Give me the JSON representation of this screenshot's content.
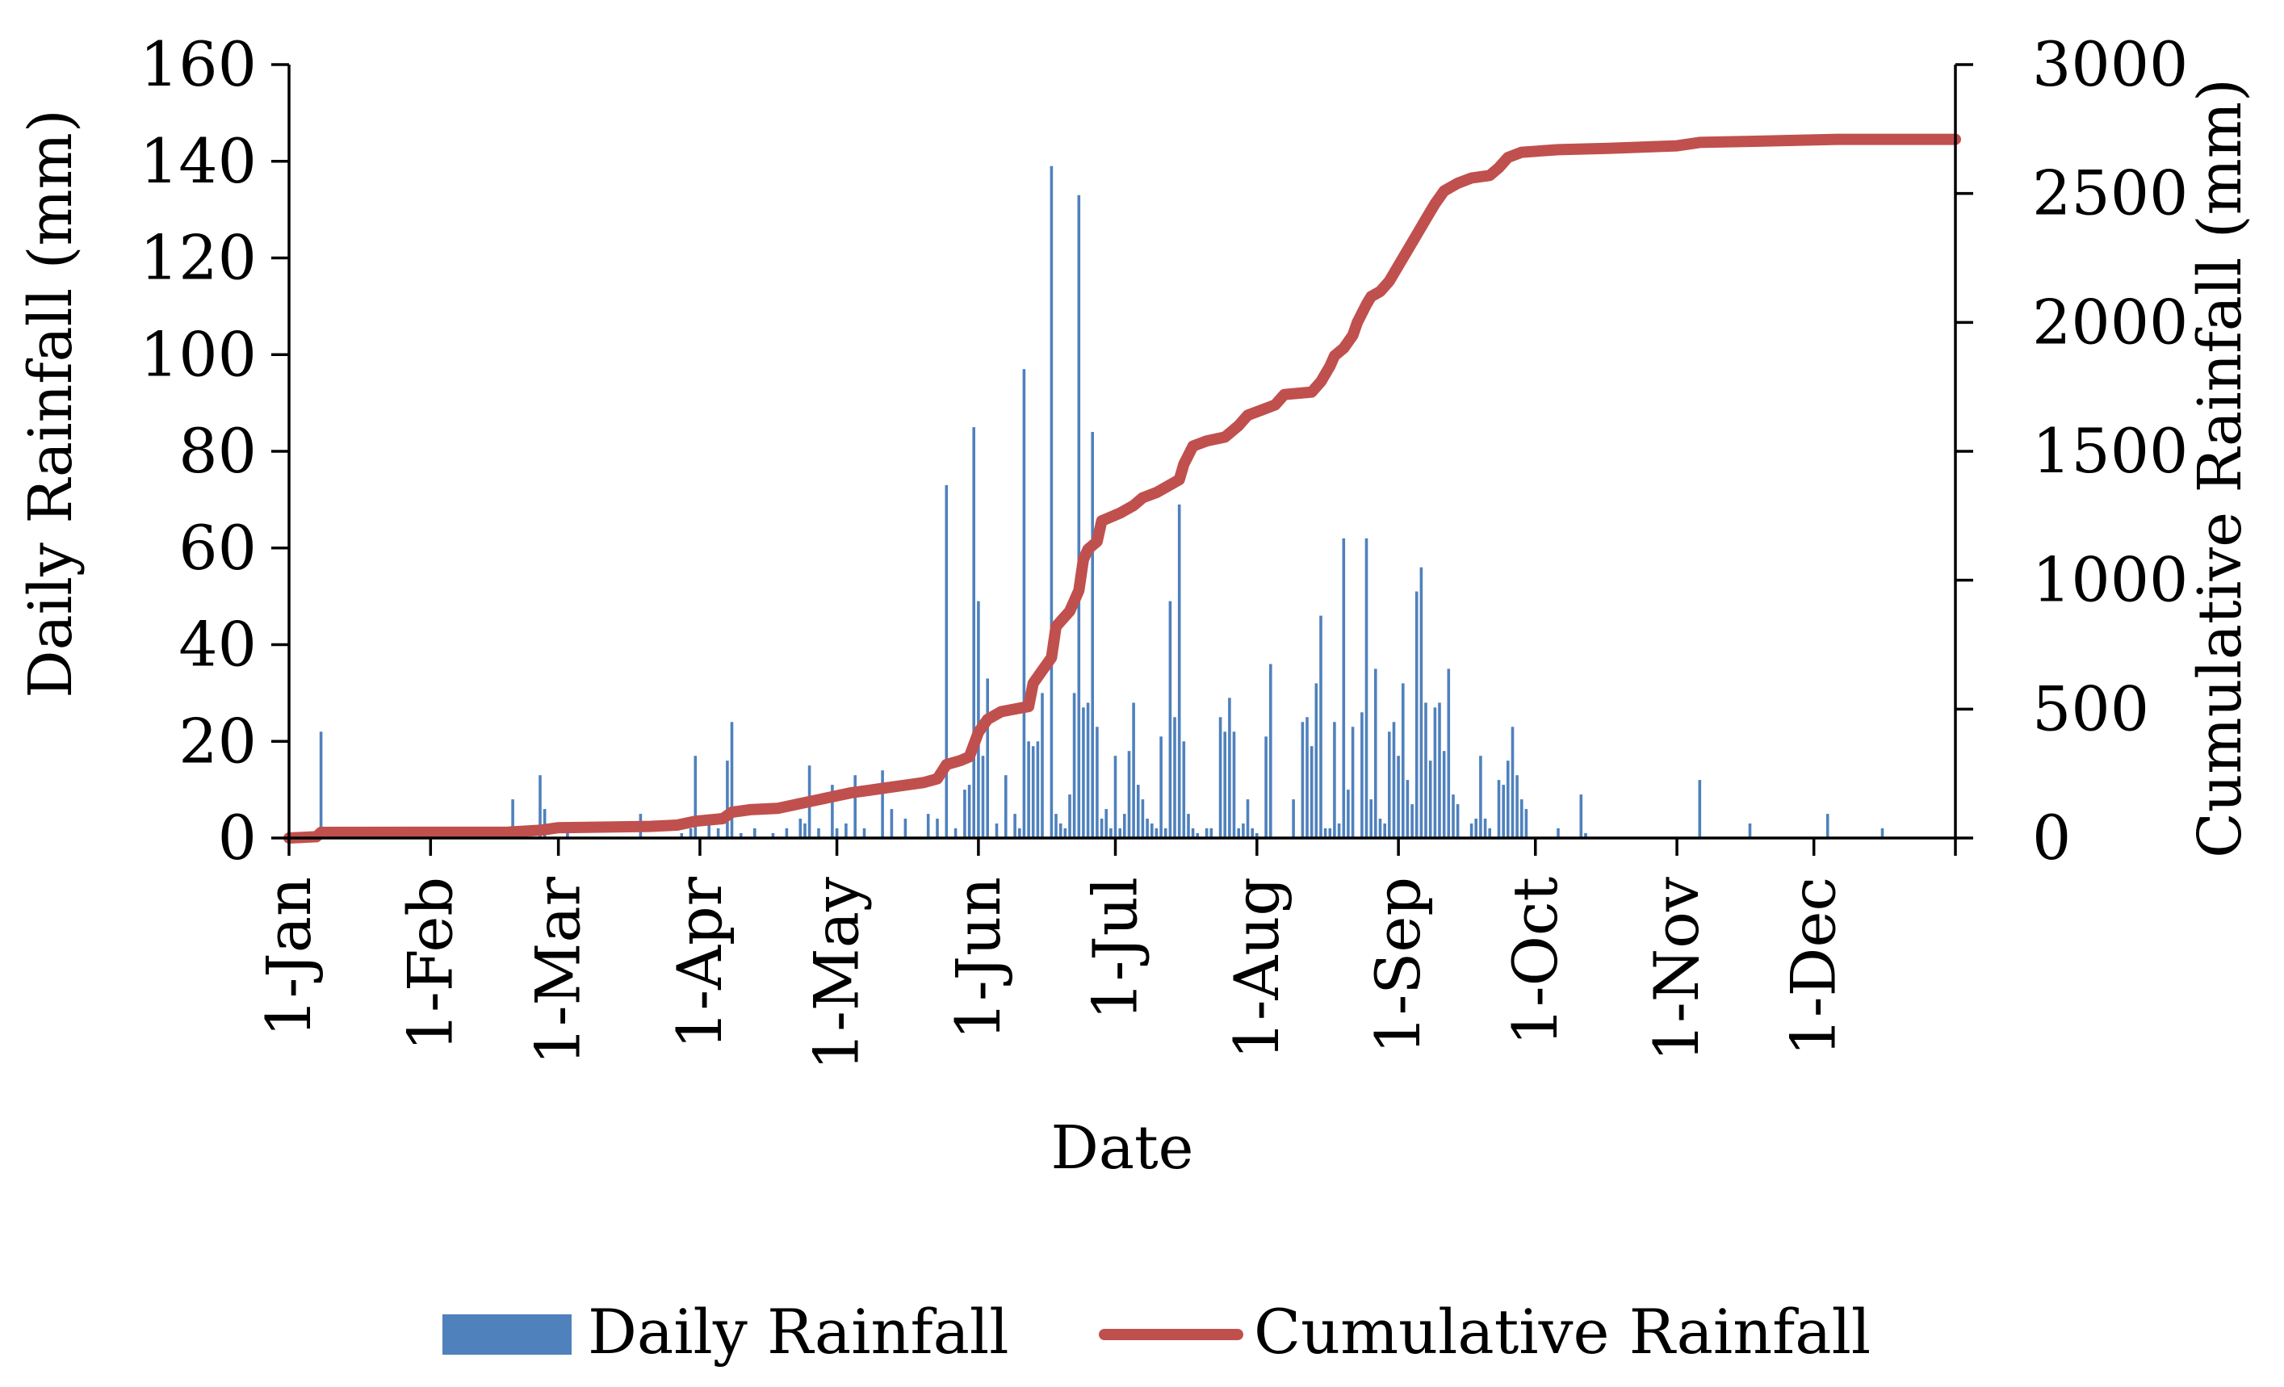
{
  "chart_data": {
    "type": "bar+line",
    "title": "",
    "xlabel": "Date",
    "ylabel": "Daily Rainfall (mm)",
    "y2label": "Cumulative Rainfall (mm)",
    "ylim": [
      0,
      160
    ],
    "y2lim": [
      0,
      3000
    ],
    "y_ticks": [
      "0",
      "20",
      "40",
      "60",
      "80",
      "100",
      "120",
      "140",
      "160"
    ],
    "y2_ticks": [
      "0",
      "500",
      "1000",
      "1500",
      "2000",
      "2500",
      "3000"
    ],
    "x_day_range": [
      1,
      366
    ],
    "month_ticks": [
      {
        "label": "1-Jan",
        "day": 1
      },
      {
        "label": "1-Feb",
        "day": 32
      },
      {
        "label": "1-Mar",
        "day": 60
      },
      {
        "label": "1-Apr",
        "day": 91
      },
      {
        "label": "1-May",
        "day": 121
      },
      {
        "label": "1-Jun",
        "day": 152
      },
      {
        "label": "1-Jul",
        "day": 182
      },
      {
        "label": "1-Aug",
        "day": 213
      },
      {
        "label": "1-Sep",
        "day": 244
      },
      {
        "label": "1-Oct",
        "day": 274
      },
      {
        "label": "1-Nov",
        "day": 305
      },
      {
        "label": "1-Dec",
        "day": 335
      }
    ],
    "series": [
      {
        "name": "Daily Rainfall",
        "type": "bar",
        "color": "#4f81bd",
        "points": [
          [
            8,
            22
          ],
          [
            10,
            1
          ],
          [
            50,
            8
          ],
          [
            53,
            2
          ],
          [
            56,
            13
          ],
          [
            57,
            6
          ],
          [
            62,
            3
          ],
          [
            78,
            5
          ],
          [
            87,
            1
          ],
          [
            89,
            2
          ],
          [
            90,
            17
          ],
          [
            93,
            3
          ],
          [
            95,
            2
          ],
          [
            97,
            16
          ],
          [
            98,
            24
          ],
          [
            100,
            1
          ],
          [
            103,
            2
          ],
          [
            107,
            1
          ],
          [
            110,
            2
          ],
          [
            113,
            4
          ],
          [
            114,
            3
          ],
          [
            115,
            15
          ],
          [
            117,
            2
          ],
          [
            120,
            11
          ],
          [
            121,
            2
          ],
          [
            123,
            3
          ],
          [
            125,
            13
          ],
          [
            127,
            2
          ],
          [
            131,
            14
          ],
          [
            133,
            6
          ],
          [
            136,
            4
          ],
          [
            141,
            5
          ],
          [
            143,
            4
          ],
          [
            145,
            73
          ],
          [
            147,
            2
          ],
          [
            149,
            10
          ],
          [
            150,
            11
          ],
          [
            151,
            85
          ],
          [
            152,
            49
          ],
          [
            153,
            17
          ],
          [
            154,
            33
          ],
          [
            156,
            3
          ],
          [
            158,
            13
          ],
          [
            160,
            5
          ],
          [
            161,
            2
          ],
          [
            162,
            97
          ],
          [
            163,
            20
          ],
          [
            164,
            19
          ],
          [
            165,
            20
          ],
          [
            166,
            30
          ],
          [
            168,
            139
          ],
          [
            169,
            5
          ],
          [
            170,
            3
          ],
          [
            171,
            2
          ],
          [
            172,
            9
          ],
          [
            173,
            30
          ],
          [
            174,
            133
          ],
          [
            175,
            27
          ],
          [
            176,
            28
          ],
          [
            177,
            84
          ],
          [
            178,
            23
          ],
          [
            179,
            4
          ],
          [
            180,
            6
          ],
          [
            181,
            2
          ],
          [
            182,
            17
          ],
          [
            183,
            2
          ],
          [
            184,
            5
          ],
          [
            185,
            18
          ],
          [
            186,
            28
          ],
          [
            187,
            11
          ],
          [
            188,
            8
          ],
          [
            189,
            4
          ],
          [
            190,
            3
          ],
          [
            191,
            2
          ],
          [
            192,
            21
          ],
          [
            193,
            2
          ],
          [
            194,
            49
          ],
          [
            195,
            25
          ],
          [
            196,
            69
          ],
          [
            197,
            20
          ],
          [
            198,
            5
          ],
          [
            199,
            2
          ],
          [
            200,
            1
          ],
          [
            202,
            2
          ],
          [
            203,
            2
          ],
          [
            205,
            25
          ],
          [
            206,
            22
          ],
          [
            207,
            29
          ],
          [
            208,
            22
          ],
          [
            209,
            2
          ],
          [
            210,
            3
          ],
          [
            211,
            8
          ],
          [
            212,
            2
          ],
          [
            213,
            1
          ],
          [
            215,
            21
          ],
          [
            216,
            36
          ],
          [
            221,
            8
          ],
          [
            223,
            24
          ],
          [
            224,
            25
          ],
          [
            225,
            19
          ],
          [
            226,
            32
          ],
          [
            227,
            46
          ],
          [
            228,
            2
          ],
          [
            229,
            2
          ],
          [
            230,
            24
          ],
          [
            231,
            3
          ],
          [
            232,
            62
          ],
          [
            233,
            10
          ],
          [
            234,
            23
          ],
          [
            236,
            26
          ],
          [
            237,
            62
          ],
          [
            238,
            8
          ],
          [
            239,
            35
          ],
          [
            240,
            4
          ],
          [
            241,
            3
          ],
          [
            242,
            22
          ],
          [
            243,
            24
          ],
          [
            244,
            17
          ],
          [
            245,
            32
          ],
          [
            246,
            12
          ],
          [
            247,
            7
          ],
          [
            248,
            51
          ],
          [
            249,
            56
          ],
          [
            250,
            28
          ],
          [
            251,
            16
          ],
          [
            252,
            27
          ],
          [
            253,
            28
          ],
          [
            254,
            18
          ],
          [
            255,
            35
          ],
          [
            256,
            9
          ],
          [
            257,
            7
          ],
          [
            260,
            3
          ],
          [
            261,
            4
          ],
          [
            262,
            17
          ],
          [
            263,
            4
          ],
          [
            264,
            2
          ],
          [
            266,
            12
          ],
          [
            267,
            11
          ],
          [
            268,
            16
          ],
          [
            269,
            23
          ],
          [
            270,
            13
          ],
          [
            271,
            8
          ],
          [
            272,
            6
          ],
          [
            279,
            2
          ],
          [
            284,
            9
          ],
          [
            285,
            1
          ],
          [
            310,
            12
          ],
          [
            321,
            3
          ],
          [
            338,
            5
          ],
          [
            350,
            2
          ]
        ]
      },
      {
        "name": "Cumulative Rainfall",
        "type": "line",
        "color": "#c0504d",
        "points": [
          [
            1,
            0
          ],
          [
            7,
            5
          ],
          [
            8,
            22
          ],
          [
            9,
            22
          ],
          [
            49,
            23
          ],
          [
            56,
            30
          ],
          [
            60,
            40
          ],
          [
            80,
            45
          ],
          [
            86,
            50
          ],
          [
            90,
            65
          ],
          [
            96,
            75
          ],
          [
            98,
            100
          ],
          [
            102,
            110
          ],
          [
            108,
            115
          ],
          [
            112,
            130
          ],
          [
            116,
            145
          ],
          [
            120,
            160
          ],
          [
            124,
            175
          ],
          [
            128,
            185
          ],
          [
            132,
            195
          ],
          [
            136,
            205
          ],
          [
            140,
            215
          ],
          [
            143,
            230
          ],
          [
            145,
            285
          ],
          [
            148,
            300
          ],
          [
            150,
            315
          ],
          [
            152,
            410
          ],
          [
            154,
            460
          ],
          [
            157,
            490
          ],
          [
            160,
            500
          ],
          [
            163,
            510
          ],
          [
            164,
            600
          ],
          [
            166,
            650
          ],
          [
            168,
            700
          ],
          [
            169,
            820
          ],
          [
            171,
            860
          ],
          [
            172,
            880
          ],
          [
            174,
            960
          ],
          [
            175,
            1080
          ],
          [
            176,
            1120
          ],
          [
            178,
            1150
          ],
          [
            179,
            1230
          ],
          [
            183,
            1260
          ],
          [
            186,
            1290
          ],
          [
            188,
            1320
          ],
          [
            191,
            1340
          ],
          [
            194,
            1370
          ],
          [
            196,
            1390
          ],
          [
            197,
            1450
          ],
          [
            199,
            1520
          ],
          [
            202,
            1540
          ],
          [
            206,
            1555
          ],
          [
            209,
            1600
          ],
          [
            211,
            1640
          ],
          [
            214,
            1660
          ],
          [
            217,
            1680
          ],
          [
            219,
            1720
          ],
          [
            225,
            1730
          ],
          [
            227,
            1770
          ],
          [
            229,
            1830
          ],
          [
            230,
            1870
          ],
          [
            232,
            1900
          ],
          [
            234,
            1950
          ],
          [
            235,
            2000
          ],
          [
            237,
            2070
          ],
          [
            238,
            2100
          ],
          [
            240,
            2120
          ],
          [
            242,
            2160
          ],
          [
            244,
            2220
          ],
          [
            246,
            2280
          ],
          [
            248,
            2340
          ],
          [
            250,
            2400
          ],
          [
            252,
            2460
          ],
          [
            254,
            2510
          ],
          [
            257,
            2540
          ],
          [
            260,
            2560
          ],
          [
            264,
            2570
          ],
          [
            266,
            2600
          ],
          [
            268,
            2640
          ],
          [
            271,
            2660
          ],
          [
            279,
            2670
          ],
          [
            290,
            2675
          ],
          [
            305,
            2685
          ],
          [
            310,
            2698
          ],
          [
            320,
            2702
          ],
          [
            340,
            2710
          ],
          [
            366,
            2710
          ]
        ]
      }
    ],
    "legend": {
      "position": "bottom",
      "items": [
        "Daily Rainfall",
        "Cumulative Rainfall"
      ]
    }
  }
}
